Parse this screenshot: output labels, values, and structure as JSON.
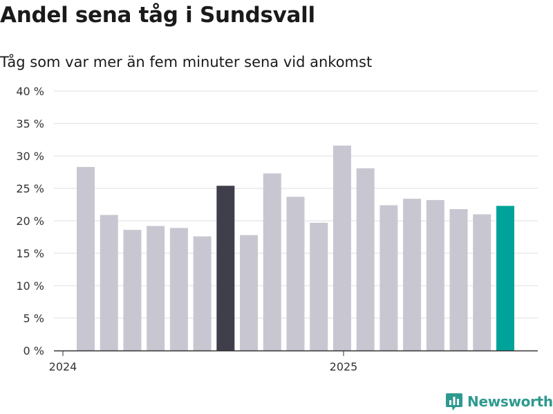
{
  "title": "Andel sena tåg i Sundsvall",
  "subtitle": "Tåg som var mer än fem minuter sena vid ankomst",
  "brand": {
    "name": "Newsworthy",
    "icon": "bar-chart-logo-icon"
  },
  "colors": {
    "default_bar": "#c8c7d1",
    "highlight_dark": "#3f3e4b",
    "highlight_teal": "#00a39a",
    "brand": "#2e9a8f"
  },
  "chart_data": {
    "type": "bar",
    "title": "Andel sena tåg i Sundsvall",
    "subtitle": "Tåg som var mer än fem minuter sena vid ankomst",
    "ylim": [
      0,
      40
    ],
    "yticks": [
      "0 %",
      "5 %",
      "10 %",
      "15 %",
      "20 %",
      "25 %",
      "30 %",
      "35 %",
      "40 %"
    ],
    "xticks": [
      "2024",
      "2025"
    ],
    "grid": true,
    "series": [
      {
        "values": [
          28.3,
          20.9,
          18.6,
          19.2,
          18.9,
          17.6,
          25.4,
          17.8,
          27.3,
          23.7,
          19.7,
          31.6,
          28.1,
          22.4,
          23.4,
          23.2,
          21.8,
          21.0,
          22.3
        ],
        "colors": [
          "default",
          "default",
          "default",
          "default",
          "default",
          "default",
          "dark",
          "default",
          "default",
          "default",
          "default",
          "default",
          "default",
          "default",
          "default",
          "default",
          "default",
          "default",
          "teal"
        ]
      }
    ]
  }
}
